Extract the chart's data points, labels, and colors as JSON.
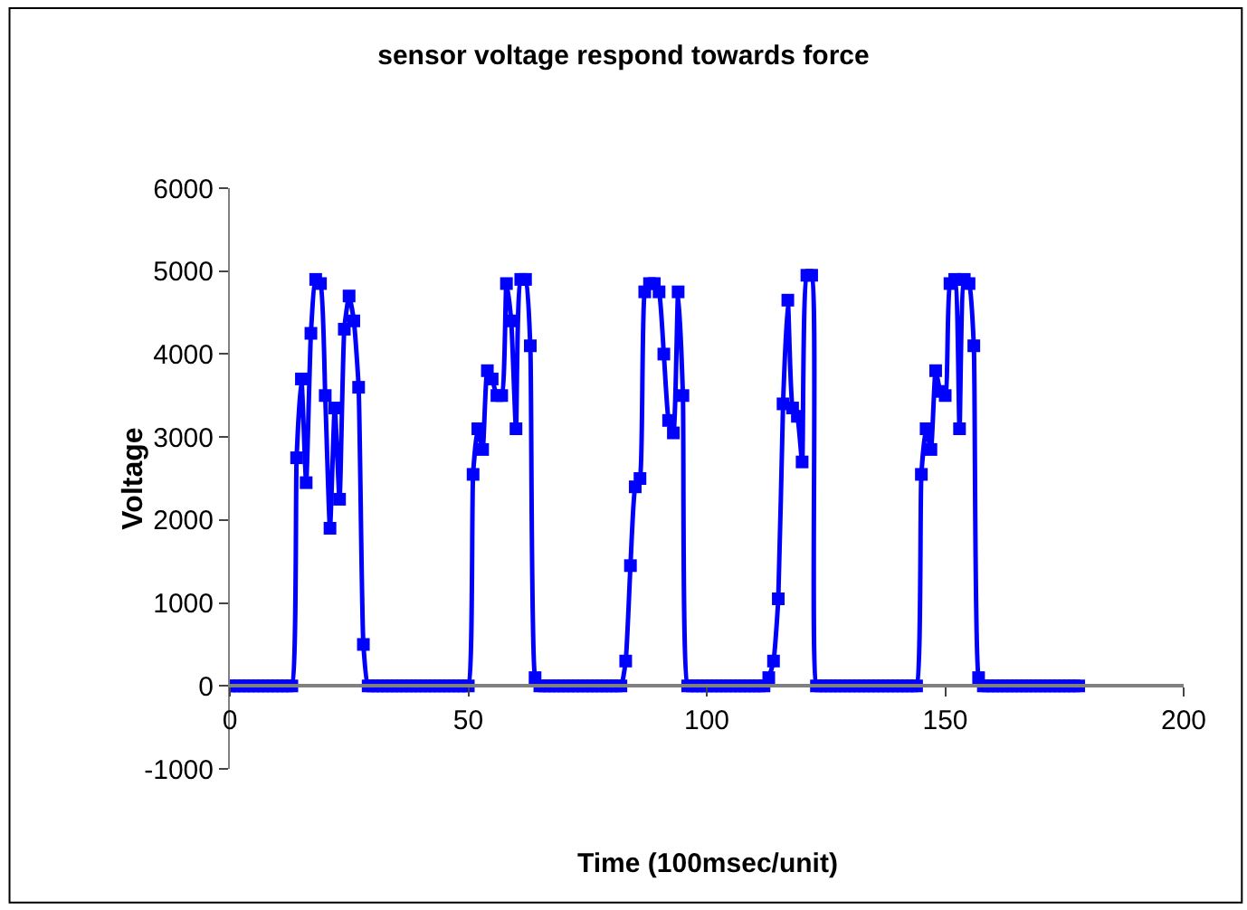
{
  "chart_data": {
    "type": "line",
    "title": "sensor voltage respond towards force",
    "xlabel": "Time (100msec/unit)",
    "ylabel": "Voltage",
    "x": [
      0,
      1,
      2,
      3,
      4,
      5,
      6,
      7,
      8,
      9,
      10,
      11,
      12,
      13,
      14,
      15,
      16,
      17,
      18,
      19,
      20,
      21,
      22,
      23,
      24,
      25,
      26,
      27,
      28,
      29,
      30,
      31,
      32,
      33,
      34,
      35,
      36,
      37,
      38,
      39,
      40,
      41,
      42,
      43,
      44,
      45,
      46,
      47,
      48,
      49,
      50,
      51,
      52,
      53,
      54,
      55,
      56,
      57,
      58,
      59,
      60,
      61,
      62,
      63,
      64,
      65,
      66,
      67,
      68,
      69,
      70,
      71,
      72,
      73,
      74,
      75,
      76,
      77,
      78,
      79,
      80,
      81,
      82,
      83,
      84,
      85,
      86,
      87,
      88,
      89,
      90,
      91,
      92,
      93,
      94,
      95,
      96,
      97,
      98,
      99,
      100,
      101,
      102,
      103,
      104,
      105,
      106,
      107,
      108,
      109,
      110,
      111,
      112,
      113,
      114,
      115,
      116,
      117,
      118,
      119,
      120,
      121,
      122,
      123,
      124,
      125,
      126,
      127,
      128,
      129,
      130,
      131,
      132,
      133,
      134,
      135,
      136,
      137,
      138,
      139,
      140,
      141,
      142,
      143,
      144,
      145,
      146,
      147,
      148,
      149,
      150,
      151,
      152,
      153,
      154,
      155,
      156,
      157,
      158,
      159,
      160,
      161,
      162,
      163,
      164,
      165,
      166,
      167,
      168,
      169,
      170,
      171,
      172,
      173,
      174,
      175,
      176,
      177,
      178
    ],
    "series": [
      {
        "color": "#0000ff",
        "values": [
          0,
          0,
          0,
          0,
          0,
          0,
          0,
          0,
          0,
          0,
          0,
          0,
          0,
          0,
          2750,
          3700,
          2450,
          4250,
          4900,
          4850,
          3500,
          1900,
          3350,
          2250,
          4300,
          4700,
          4400,
          3600,
          500,
          0,
          0,
          0,
          0,
          0,
          0,
          0,
          0,
          0,
          0,
          0,
          0,
          0,
          0,
          0,
          0,
          0,
          0,
          0,
          0,
          0,
          0,
          2550,
          3100,
          2850,
          3800,
          3700,
          3500,
          3500,
          4850,
          4400,
          3100,
          4900,
          4900,
          4100,
          100,
          0,
          0,
          0,
          0,
          0,
          0,
          0,
          0,
          0,
          0,
          0,
          0,
          0,
          0,
          0,
          0,
          0,
          0,
          300,
          1450,
          2400,
          2500,
          4750,
          4850,
          4850,
          4750,
          4000,
          3200,
          3050,
          4750,
          3500,
          0,
          0,
          0,
          0,
          0,
          0,
          0,
          0,
          0,
          0,
          0,
          0,
          0,
          0,
          0,
          0,
          0,
          100,
          300,
          1050,
          3400,
          4650,
          3350,
          3250,
          2700,
          4950,
          4950,
          0,
          0,
          0,
          0,
          0,
          0,
          0,
          0,
          0,
          0,
          0,
          0,
          0,
          0,
          0,
          0,
          0,
          0,
          0,
          0,
          0,
          0,
          2550,
          3100,
          2850,
          3800,
          3550,
          3500,
          4850,
          4900,
          3100,
          4900,
          4850,
          4100,
          100,
          0,
          0,
          0,
          0,
          0,
          0,
          0,
          0,
          0,
          0,
          0,
          0,
          0,
          0,
          0,
          0,
          0,
          0,
          0,
          0,
          0
        ]
      }
    ],
    "xlim": [
      0,
      200
    ],
    "xticks": [
      0,
      50,
      100,
      150,
      200
    ],
    "ylim": [
      -1000,
      6000
    ],
    "yticks": [
      -1000,
      0,
      1000,
      2000,
      3000,
      4000,
      5000,
      6000
    ],
    "grid": false,
    "marker": "square",
    "line_style": "solid"
  }
}
